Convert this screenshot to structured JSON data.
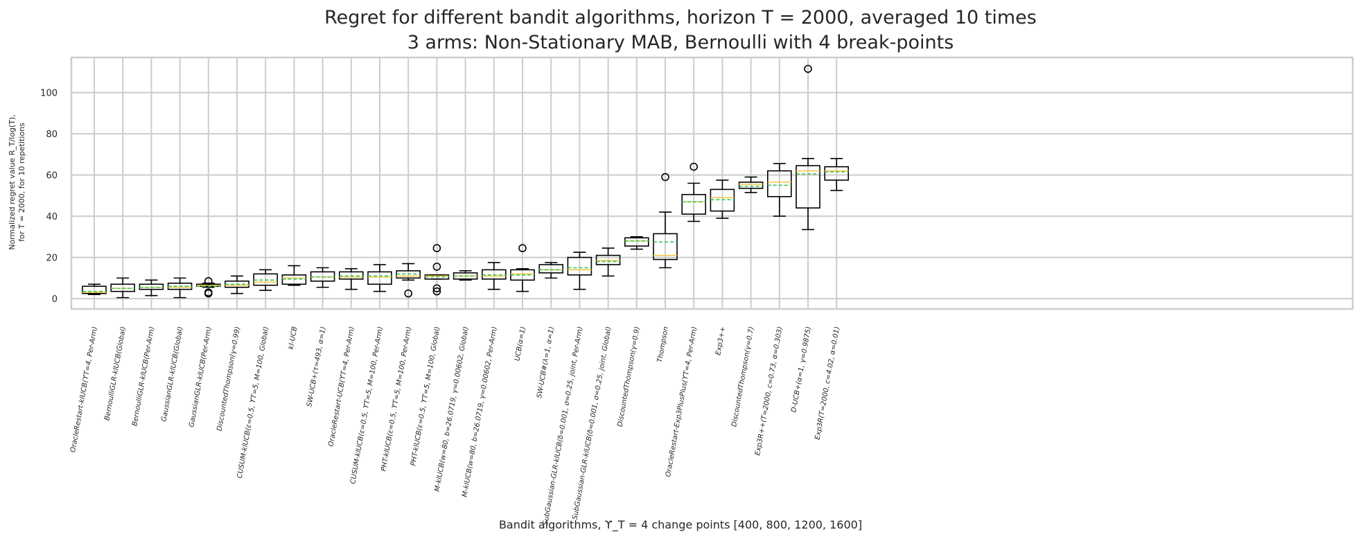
{
  "chart_data": {
    "type": "box",
    "title": "Regret for different bandit algorithms, horizon T = 2000, averaged 10 times",
    "subtitle": "3 arms: Non-Stationary MAB, Bernoulli with 4 break-points",
    "xlabel": "Bandit algorithms, ϒ_T = 4 change points [400, 800, 1200, 1600]",
    "ylabel_line1": "Normalized regret value R_T/log(T),",
    "ylabel_line2": "for T = 2000, for 10 repetitions",
    "ylim": [
      -5,
      117
    ],
    "yticks": [
      "0",
      "20",
      "40",
      "60",
      "80",
      "100"
    ],
    "grid": true,
    "legend": "none",
    "colors": {
      "box": "#000000",
      "median": "#f2c94c",
      "mean": "#39c25a",
      "grid": "#cccccc",
      "spine": "#cccccc"
    },
    "categories": [
      "OracleRestart-klUCB(ϒT=4, Per-Arm)",
      "BernoulliGLR-klUCB(Global)",
      "BernoulliGLR-klUCB(Per-Arm)",
      "GaussianGLR-klUCB(Global)",
      "GaussianGLR-klUCB(Per-Arm)",
      "DiscountedThompson(γ=0.99)",
      "CUSUM-klUCB(ε=0.5, ϒT=5, M=100, Global)",
      "kl-UCB",
      "SW-UCB+(τ=493, α=1)",
      "OracleRestart-UCB(ϒT=4, Per-Arm)",
      "CUSUM-klUCB(ε=0.5, ϒT=5, M=100, Per-Arm)",
      "PHT-klUCB(ε=0.5, ϒT=5, M=100, Per-Arm)",
      "PHT-klUCB(ε=0.5, ϒT=5, M=100, Global)",
      "M-klUCB(w=80, b=26.0719, γ=0.00602, Global)",
      "M-klUCB(w=80, b=26.0719, γ=0.00602, Per-Arm)",
      "UCB(α=1)",
      "SW-UCB#(λ=1, α=1)",
      "SubGaussian-GLR-klUCB(δ=0.001, σ=0.25, joint, Per-Arm)",
      "SubGaussian-GLR-klUCB(δ=0.001, σ=0.25, joint, Global)",
      "DiscountedThompson(γ=0.9)",
      "Thompson",
      "OracleRestart-Exp3PlusPlus(ϒT=4, Per-Arm)",
      "Exp3++",
      "DiscountedThompson(γ=0.7)",
      "Exp3R++(T=2000, c=0.73, α=0.303)",
      "D-UCB+(α=1, γ=0.9875)",
      "Exp3R(T=2000, c=4.02, α=0.01)"
    ],
    "boxes": [
      {
        "whislo": 2,
        "q1": 2.5,
        "med": 3,
        "q3": 6,
        "whishi": 7,
        "mean": 3.5,
        "fliers": []
      },
      {
        "whislo": 0.5,
        "q1": 3.5,
        "med": 5,
        "q3": 7,
        "whishi": 10,
        "mean": 5,
        "fliers": []
      },
      {
        "whislo": 1.5,
        "q1": 4.5,
        "med": 5.5,
        "q3": 7,
        "whishi": 9,
        "mean": 5.5,
        "fliers": []
      },
      {
        "whislo": 0.5,
        "q1": 4.5,
        "med": 5.5,
        "q3": 7.5,
        "whishi": 10,
        "mean": 6,
        "fliers": []
      },
      {
        "whislo": 5.5,
        "q1": 6,
        "med": 6.5,
        "q3": 7,
        "whishi": 7.5,
        "mean": 6,
        "fliers": [
          8.5,
          3,
          2.5
        ]
      },
      {
        "whislo": 2.5,
        "q1": 5.5,
        "med": 6.5,
        "q3": 8.5,
        "whishi": 11,
        "mean": 7,
        "fliers": []
      },
      {
        "whislo": 4,
        "q1": 6.5,
        "med": 8,
        "q3": 12,
        "whishi": 14,
        "mean": 9,
        "fliers": []
      },
      {
        "whislo": 6.5,
        "q1": 7,
        "med": 10,
        "q3": 11.5,
        "whishi": 16,
        "mean": 9.5,
        "fliers": []
      },
      {
        "whislo": 5.5,
        "q1": 8.5,
        "med": 10.5,
        "q3": 13,
        "whishi": 15,
        "mean": 10.5,
        "fliers": []
      },
      {
        "whislo": 4.5,
        "q1": 9.5,
        "med": 10.5,
        "q3": 13,
        "whishi": 14.5,
        "mean": 11,
        "fliers": []
      },
      {
        "whislo": 3.5,
        "q1": 7,
        "med": 10.5,
        "q3": 13,
        "whishi": 16.5,
        "mean": 11,
        "fliers": []
      },
      {
        "whislo": 9,
        "q1": 10,
        "med": 11,
        "q3": 13.5,
        "whishi": 17,
        "mean": 12,
        "fliers": [
          2.5
        ]
      },
      {
        "whislo": 9.5,
        "q1": 9.5,
        "med": 11,
        "q3": 11.5,
        "whishi": 11.5,
        "mean": 10.5,
        "fliers": [
          24.5,
          15.5,
          5,
          3.5
        ]
      },
      {
        "whislo": 9,
        "q1": 9.5,
        "med": 11,
        "q3": 12.5,
        "whishi": 13.5,
        "mean": 11,
        "fliers": []
      },
      {
        "whislo": 4.5,
        "q1": 9.5,
        "med": 11,
        "q3": 14,
        "whishi": 17.5,
        "mean": 11.5,
        "fliers": []
      },
      {
        "whislo": 3.5,
        "q1": 9,
        "med": 12,
        "q3": 14,
        "whishi": 14.5,
        "mean": 11.5,
        "fliers": [
          24.5
        ]
      },
      {
        "whislo": 10,
        "q1": 12.5,
        "med": 14,
        "q3": 16.5,
        "whishi": 17.5,
        "mean": 14,
        "fliers": []
      },
      {
        "whislo": 4.5,
        "q1": 11.5,
        "med": 14,
        "q3": 20,
        "whishi": 22.5,
        "mean": 15,
        "fliers": []
      },
      {
        "whislo": 11,
        "q1": 16.5,
        "med": 18.5,
        "q3": 21,
        "whishi": 24.5,
        "mean": 18,
        "fliers": []
      },
      {
        "whislo": 24,
        "q1": 25.5,
        "med": 28,
        "q3": 29.5,
        "whishi": 30,
        "mean": 28,
        "fliers": []
      },
      {
        "whislo": 15,
        "q1": 19,
        "med": 21,
        "q3": 31.5,
        "whishi": 42,
        "mean": 27.5,
        "fliers": [
          59
        ]
      },
      {
        "whislo": 37.5,
        "q1": 41,
        "med": 47,
        "q3": 50.5,
        "whishi": 56,
        "mean": 47,
        "fliers": [
          64
        ]
      },
      {
        "whislo": 39,
        "q1": 42.5,
        "med": 49,
        "q3": 53,
        "whishi": 57.5,
        "mean": 48,
        "fliers": []
      },
      {
        "whislo": 51.5,
        "q1": 53.5,
        "med": 55.5,
        "q3": 56.5,
        "whishi": 59,
        "mean": 54.5,
        "fliers": []
      },
      {
        "whislo": 40,
        "q1": 49.5,
        "med": 56.5,
        "q3": 62,
        "whishi": 65.5,
        "mean": 55,
        "fliers": []
      },
      {
        "whislo": 33.5,
        "q1": 44,
        "med": 62,
        "q3": 64.5,
        "whishi": 68,
        "mean": 60.5,
        "fliers": [
          111.5
        ]
      },
      {
        "whislo": 52.5,
        "q1": 57.5,
        "med": 62,
        "q3": 64,
        "whishi": 68,
        "mean": 61.5,
        "fliers": []
      }
    ]
  }
}
